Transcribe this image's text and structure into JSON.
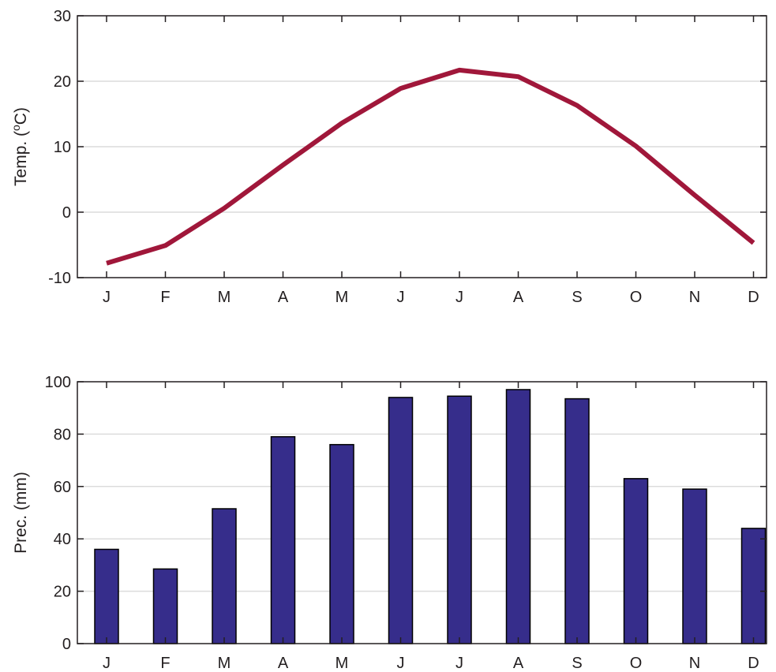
{
  "chart_data": [
    {
      "type": "line",
      "ylabel_prefix": "Temp. (",
      "ylabel_sup": "o",
      "ylabel_suffix": "C)",
      "categories": [
        "J",
        "F",
        "M",
        "A",
        "M",
        "J",
        "J",
        "A",
        "S",
        "O",
        "N",
        "D"
      ],
      "series": [
        {
          "values": [
            -7.8,
            -5.1,
            0.6,
            7.2,
            13.6,
            18.9,
            21.7,
            20.7,
            16.3,
            10.1,
            2.6,
            -4.7
          ],
          "color": "#a0173a"
        }
      ],
      "ylim": [
        -10,
        30
      ],
      "yticks": [
        -10,
        0,
        10,
        20,
        30
      ],
      "ytick_labels": [
        "-10",
        "0",
        "10",
        "20",
        "30"
      ],
      "grid": true
    },
    {
      "type": "bar",
      "ylabel": "Prec. (mm)",
      "categories": [
        "J",
        "F",
        "M",
        "A",
        "M",
        "J",
        "J",
        "A",
        "S",
        "O",
        "N",
        "D"
      ],
      "series": [
        {
          "values": [
            36,
            28.5,
            51.5,
            79,
            76,
            94,
            94.5,
            97,
            93.5,
            63,
            59,
            44
          ],
          "color": "#362d8b"
        }
      ],
      "ylim": [
        0,
        100
      ],
      "yticks": [
        0,
        20,
        40,
        60,
        80,
        100
      ],
      "ytick_labels": [
        "0",
        "20",
        "40",
        "60",
        "80",
        "100"
      ],
      "grid": true
    }
  ]
}
